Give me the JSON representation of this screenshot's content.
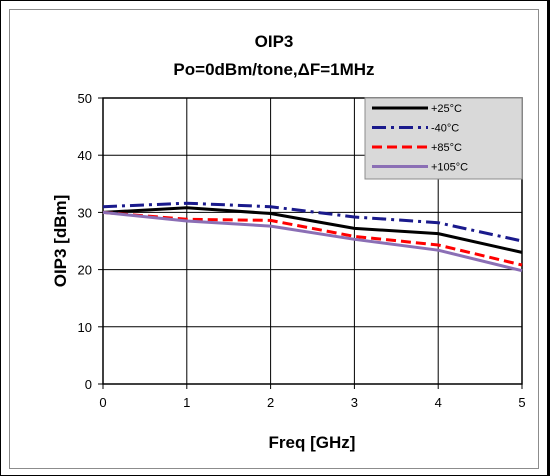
{
  "chart_data": {
    "type": "line",
    "title": "OIP3",
    "subtitle": "Po=0dBm/tone,ΔF=1MHz",
    "xlabel": "Freq [GHz]",
    "ylabel": "OIP3 [dBm]",
    "xlim": [
      0,
      5
    ],
    "ylim": [
      0,
      50
    ],
    "xticks": [
      "0",
      "1",
      "2",
      "3",
      "4",
      "5"
    ],
    "yticks": [
      "0",
      "10",
      "20",
      "30",
      "40",
      "50"
    ],
    "grid": true,
    "legend_position": "top-right",
    "series": [
      {
        "name": "+25°C",
        "color": "#000000",
        "dash": "solid",
        "x": [
          0,
          1,
          2,
          3,
          4,
          5
        ],
        "values": [
          30.0,
          30.8,
          29.8,
          27.2,
          26.3,
          23.0
        ]
      },
      {
        "name": "-40°C",
        "color": "#1a1a8c",
        "dash": "dashdot",
        "x": [
          0,
          1,
          2,
          3,
          4,
          5
        ],
        "values": [
          31.0,
          31.6,
          31.0,
          29.2,
          28.2,
          25.0
        ]
      },
      {
        "name": "+85°C",
        "color": "#ff0000",
        "dash": "dashed",
        "x": [
          0,
          1,
          2,
          3,
          4,
          5
        ],
        "values": [
          30.0,
          28.8,
          28.6,
          25.8,
          24.3,
          20.8
        ]
      },
      {
        "name": "+105°C",
        "color": "#8b6fb5",
        "dash": "solid",
        "x": [
          0,
          1,
          2,
          3,
          4,
          5
        ],
        "values": [
          30.0,
          28.5,
          27.6,
          25.3,
          23.4,
          19.8
        ]
      }
    ]
  }
}
